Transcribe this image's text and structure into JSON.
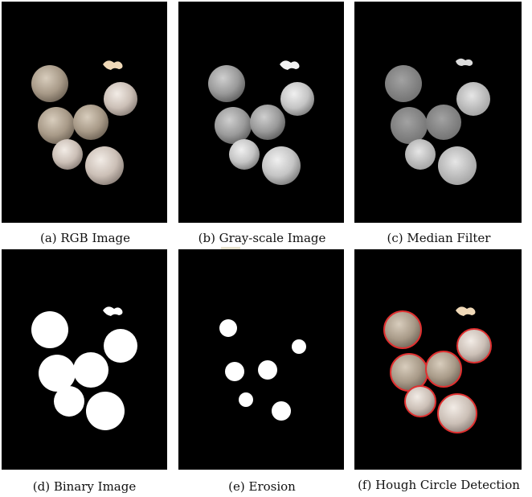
{
  "figure": {
    "panels": [
      {
        "id": "a",
        "caption": "(a) RGB Image"
      },
      {
        "id": "b",
        "caption": "(b) Gray-scale Image"
      },
      {
        "id": "c",
        "caption": "(c) Median Filter"
      },
      {
        "id": "d",
        "caption": "(d) Binary Image"
      },
      {
        "id": "e",
        "caption": "(e) Erosion"
      },
      {
        "id": "f",
        "caption": "(f) Hough Circle Detection"
      }
    ]
  },
  "colors": {
    "background": "#000000",
    "detection_circle": "#e03030",
    "binary_fg": "#ffffff"
  }
}
